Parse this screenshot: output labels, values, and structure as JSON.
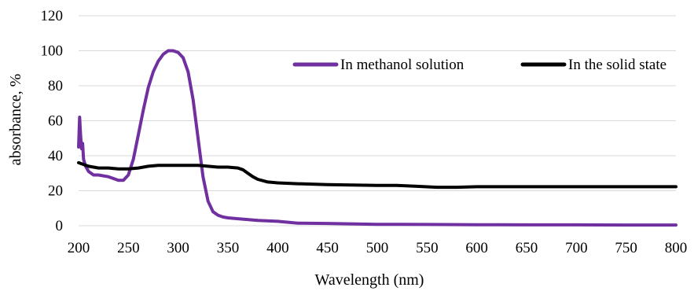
{
  "chart_data": {
    "type": "line",
    "title": "",
    "xlabel": "Wavelength (nm)",
    "ylabel": "absorbance, %",
    "xlim": [
      200,
      800
    ],
    "ylim": [
      0,
      120
    ],
    "xticks": [
      200,
      250,
      300,
      350,
      400,
      450,
      500,
      550,
      600,
      650,
      700,
      750,
      800
    ],
    "yticks": [
      0,
      20,
      40,
      60,
      80,
      100,
      120
    ],
    "grid": "horizontal",
    "legend": "top-right",
    "series": [
      {
        "name": "In methanol solution",
        "color": "#7030a0",
        "x": [
          200,
          201,
          202,
          203,
          204,
          205,
          207,
          210,
          215,
          220,
          230,
          240,
          245,
          250,
          255,
          260,
          265,
          270,
          275,
          280,
          285,
          290,
          295,
          300,
          305,
          310,
          315,
          320,
          325,
          330,
          335,
          340,
          345,
          350,
          360,
          380,
          400,
          420,
          450,
          500,
          550,
          600,
          650,
          700,
          750,
          800
        ],
        "y": [
          45,
          62,
          52,
          44,
          47,
          38,
          34,
          31,
          29,
          29,
          28,
          26,
          26,
          29,
          38,
          52,
          66,
          79,
          88,
          94,
          98,
          100,
          100,
          99,
          96,
          88,
          72,
          50,
          28,
          14,
          8,
          6,
          5,
          4.5,
          4,
          3,
          2.5,
          1.5,
          1.3,
          0.8,
          0.7,
          0.6,
          0.5,
          0.5,
          0.4,
          0.4
        ]
      },
      {
        "name": "In the solid state",
        "color": "#000000",
        "x": [
          200,
          205,
          210,
          220,
          230,
          240,
          250,
          260,
          270,
          280,
          290,
          300,
          310,
          320,
          330,
          340,
          350,
          360,
          365,
          370,
          375,
          380,
          390,
          400,
          420,
          450,
          500,
          520,
          540,
          560,
          580,
          600,
          650,
          700,
          750,
          800
        ],
        "y": [
          36,
          35,
          34,
          33,
          33,
          32.5,
          32.5,
          33,
          34,
          34.5,
          34.5,
          34.5,
          34.5,
          34.5,
          34,
          33.5,
          33.5,
          33,
          32,
          30,
          28,
          26.5,
          25,
          24.5,
          24,
          23.5,
          23,
          23,
          22.5,
          22,
          22,
          22.3,
          22.3,
          22.3,
          22.3,
          22.3
        ]
      }
    ]
  }
}
